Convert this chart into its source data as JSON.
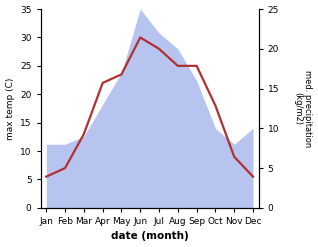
{
  "months": [
    "Jan",
    "Feb",
    "Mar",
    "Apr",
    "May",
    "Jun",
    "Jul",
    "Aug",
    "Sep",
    "Oct",
    "Nov",
    "Dec"
  ],
  "month_positions": [
    0,
    1,
    2,
    3,
    4,
    5,
    6,
    7,
    8,
    9,
    10,
    11
  ],
  "temperature": [
    5.5,
    7.0,
    13.0,
    22.0,
    23.5,
    30.0,
    28.0,
    25.0,
    25.0,
    18.0,
    9.0,
    5.5
  ],
  "precipitation": [
    8.0,
    8.0,
    9.0,
    13.0,
    17.0,
    25.0,
    22.0,
    20.0,
    16.0,
    10.0,
    8.0,
    10.0
  ],
  "temp_color": "#b03030",
  "precip_color": "#b8c4f0",
  "ylabel_left": "max temp (C)",
  "ylabel_right": "med. precipitation\n(kg/m2)",
  "xlabel": "date (month)",
  "ylim_left": [
    0,
    35
  ],
  "ylim_right": [
    0,
    25
  ],
  "yticks_left": [
    0,
    5,
    10,
    15,
    20,
    25,
    30,
    35
  ],
  "yticks_right": [
    0,
    5,
    10,
    15,
    20,
    25
  ],
  "bg_color": "#ffffff",
  "temp_linewidth": 1.6
}
